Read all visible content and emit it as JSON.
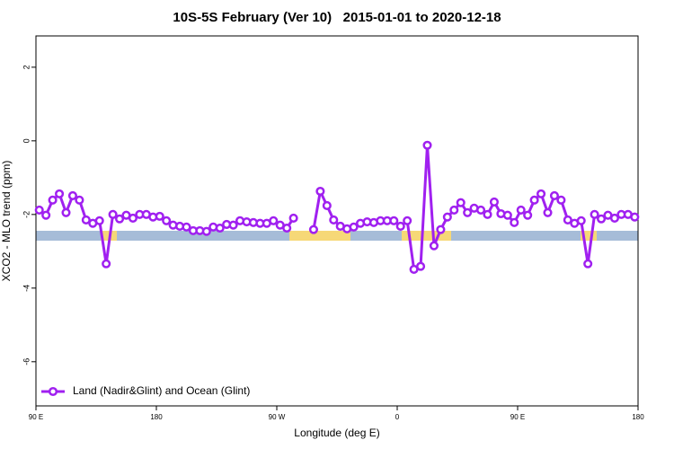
{
  "chart_data": {
    "type": "line",
    "title": "10S-5S February (Ver 10)   2015-01-01 to 2020-12-18",
    "x_label": "Longitude (deg E)",
    "y_label": "XCO2 - MLO trend (ppm)",
    "x": [
      92.5,
      97.5,
      102.5,
      107.5,
      112.5,
      117.5,
      122.5,
      127.5,
      132.5,
      137.5,
      142.5,
      147.5,
      152.5,
      157.5,
      162.5,
      167.5,
      172.5,
      177.5,
      182.5,
      187.5,
      192.5,
      197.5,
      202.5,
      207.5,
      212.5,
      217.5,
      222.5,
      227.5,
      232.5,
      237.5,
      242.5,
      247.5,
      252.5,
      257.5,
      262.5,
      267.5,
      272.5,
      277.5,
      282.5,
      287.5,
      292.5,
      297.5,
      302.5,
      307.5,
      312.5,
      317.5,
      322.5,
      327.5,
      332.5,
      337.5,
      342.5,
      347.5,
      352.5,
      357.5,
      362.5,
      367.5,
      372.5,
      377.5,
      382.5,
      387.5,
      392.5,
      397.5,
      402.5,
      407.5,
      412.5,
      417.5,
      422.5,
      427.5,
      432.5,
      437.5,
      442.5,
      447.5,
      452.5,
      457.5,
      462.5,
      467.5,
      472.5,
      477.5,
      482.5,
      487.5,
      492.5,
      497.5,
      502.5,
      507.5,
      512.5,
      517.5,
      522.5,
      527.5,
      532.5,
      537.5
    ],
    "series": [
      {
        "name": "Land (Nadir&Glint) and Ocean (Glint)",
        "color": "#a020f0",
        "values": [
          -1.88,
          -2.02,
          -1.61,
          -1.44,
          -1.95,
          -1.49,
          -1.61,
          -2.15,
          -2.24,
          -2.17,
          -3.34,
          -2.0,
          -2.12,
          -2.02,
          -2.1,
          -2.0,
          -2.0,
          -2.07,
          -2.05,
          -2.17,
          -2.29,
          -2.32,
          -2.34,
          -2.44,
          -2.44,
          -2.46,
          -2.34,
          -2.37,
          -2.27,
          -2.29,
          -2.17,
          -2.2,
          -2.22,
          -2.24,
          -2.24,
          -2.17,
          -2.29,
          -2.37,
          -2.1,
          null,
          null,
          -2.41,
          -1.37,
          -1.76,
          -2.15,
          -2.32,
          -2.39,
          -2.34,
          -2.24,
          -2.2,
          -2.22,
          -2.17,
          -2.17,
          -2.17,
          -2.32,
          -2.17,
          -3.49,
          -3.41,
          -0.12,
          -2.85,
          -2.41,
          -2.07,
          -1.88,
          -1.68,
          -1.95,
          -1.83,
          -1.88,
          -2.0,
          -1.66,
          -1.98,
          -2.02,
          -2.22,
          -1.88,
          -2.02,
          -1.61,
          -1.44,
          -1.95,
          -1.49,
          -1.61,
          -2.15,
          -2.24,
          -2.17,
          -3.34,
          -2.0,
          -2.12,
          -2.02,
          -2.1,
          -2.0,
          -2.0,
          -2.07
        ]
      }
    ],
    "xlim": [
      90,
      540
    ],
    "xticks": [
      {
        "value": 90,
        "label": "90 E"
      },
      180,
      {
        "value": 270,
        "label": "90 W"
      },
      {
        "value": 360,
        "label": "0"
      },
      {
        "value": 450,
        "label": "90 E"
      },
      {
        "value": 540,
        "label": "180"
      }
    ],
    "ylim": [
      -7.2,
      2.85
    ],
    "yticks": [
      -6,
      -4,
      -2,
      0,
      2
    ],
    "legend": "bottom-left"
  }
}
